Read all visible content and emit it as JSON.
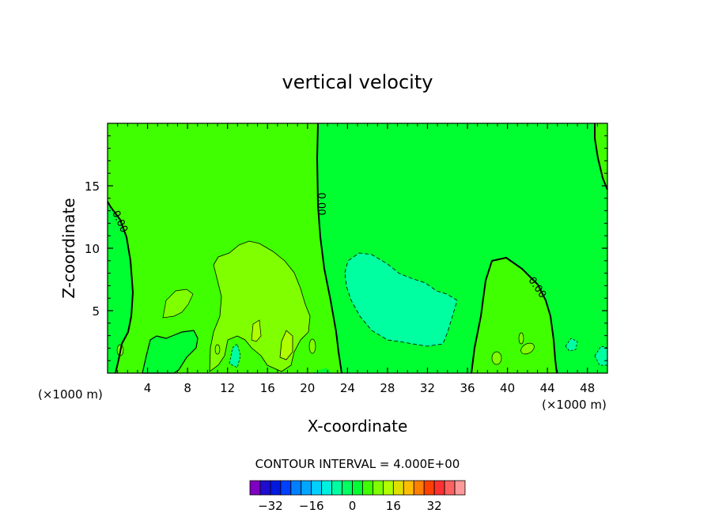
{
  "chart_data": {
    "type": "heatmap",
    "title": "vertical velocity",
    "xlabel": "X-coordinate",
    "ylabel": "Z-coordinate",
    "x_unit_left": "(×1000 m)",
    "x_unit_right": "(×1000 m)",
    "xlim": [
      0,
      50
    ],
    "ylim": [
      0,
      20
    ],
    "xticks": [
      4,
      8,
      12,
      16,
      20,
      24,
      28,
      32,
      36,
      40,
      44,
      48
    ],
    "yticks": [
      5,
      10,
      15
    ],
    "contour_interval_text": "CONTOUR INTERVAL = 4.000E+00",
    "contour_labels": [
      "0.00",
      "0.00",
      "0.00"
    ],
    "colorbar": {
      "levels": [
        -36,
        -32,
        -28,
        -24,
        -20,
        -16,
        -12,
        -8,
        -4,
        0,
        4,
        8,
        12,
        16,
        20,
        24,
        28,
        32,
        36
      ],
      "colors": [
        "#7f00bf",
        "#1f0ccf",
        "#0019df",
        "#0040ff",
        "#0080ff",
        "#00a6ff",
        "#00cfff",
        "#00f0e0",
        "#00ffa0",
        "#00ff60",
        "#00ff30",
        "#40ff00",
        "#80ff00",
        "#b0ff00",
        "#e0e000",
        "#ffbf00",
        "#ff8000",
        "#ff4000",
        "#ff3030",
        "#ff6060",
        "#ff9a9a"
      ],
      "tick_labels": [
        "−32",
        "−16",
        "0",
        "16",
        "32"
      ],
      "tick_values": [
        -32,
        -16,
        0,
        16,
        32
      ]
    },
    "background_level_color": "#00ff30",
    "regions": [
      {
        "level": 4,
        "color": "#40ff00",
        "outline": "x0y19.6 bounded by 0.00 contour at x≈21 and x≈49.5 (left/right upper)"
      },
      {
        "level": 8,
        "color": "#80ff00",
        "note": "updraft near x 10–20 km"
      },
      {
        "level": -4,
        "color": "#00ffa0",
        "note": "downdraft near x 24–35 km"
      }
    ]
  }
}
